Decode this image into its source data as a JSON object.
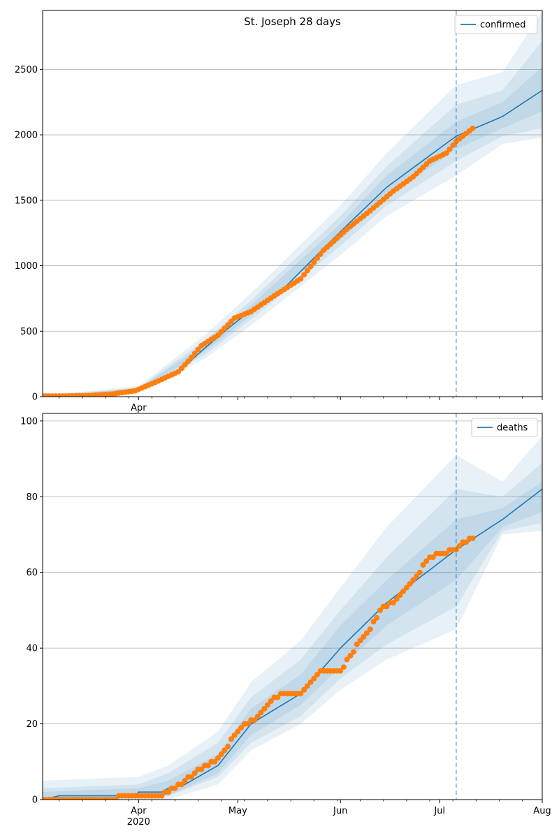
{
  "figure": {
    "title": "St. Joseph 28 days"
  },
  "chart_data": [
    {
      "type": "line",
      "name": "confirmed",
      "legend": {
        "label": "confirmed",
        "placement": "top-right"
      },
      "series_color": "#1f77b4",
      "observed_color": "#ff7f0e",
      "band_color": "#1f77b4",
      "grid": "y",
      "x_range": [
        "2020-03-03",
        "2020-08-01"
      ],
      "ylim": [
        0,
        2950
      ],
      "yticks": [
        0,
        500,
        1000,
        1500,
        2000,
        2500
      ],
      "vline_date": "2020-07-06",
      "x_major_ticks": [
        {
          "date": "2020-04-01",
          "label": "Apr",
          "sublabel": ""
        },
        {
          "date": "2020-05-01",
          "label": "",
          "sublabel": ""
        },
        {
          "date": "2020-06-01",
          "label": "",
          "sublabel": ""
        },
        {
          "date": "2020-07-01",
          "label": "",
          "sublabel": ""
        },
        {
          "date": "2020-08-01",
          "label": "",
          "sublabel": ""
        }
      ],
      "median_anchors": [
        [
          "2020-03-03",
          5
        ],
        [
          "2020-03-20",
          12
        ],
        [
          "2020-03-28",
          30
        ],
        [
          "2020-04-01",
          55
        ],
        [
          "2020-04-07",
          110
        ],
        [
          "2020-04-14",
          210
        ],
        [
          "2020-04-21",
          370
        ],
        [
          "2020-04-28",
          520
        ],
        [
          "2020-05-05",
          660
        ],
        [
          "2020-05-15",
          830
        ],
        [
          "2020-06-01",
          1260
        ],
        [
          "2020-06-15",
          1600
        ],
        [
          "2020-07-06",
          1990
        ],
        [
          "2020-07-20",
          2140
        ],
        [
          "2020-08-01",
          2340
        ]
      ],
      "bands": [
        {
          "lower": [
            [
              "2020-03-03",
              0
            ],
            [
              "2020-04-01",
              35
            ],
            [
              "2020-04-21",
              290
            ],
            [
              "2020-05-05",
              545
            ],
            [
              "2020-06-01",
              1080
            ],
            [
              "2020-06-15",
              1380
            ],
            [
              "2020-07-06",
              1690
            ],
            [
              "2020-07-20",
              1930
            ],
            [
              "2020-08-01",
              1980
            ]
          ],
          "upper": [
            [
              "2020-03-03",
              8
            ],
            [
              "2020-04-01",
              80
            ],
            [
              "2020-04-21",
              470
            ],
            [
              "2020-05-05",
              790
            ],
            [
              "2020-06-01",
              1460
            ],
            [
              "2020-06-15",
              1860
            ],
            [
              "2020-07-06",
              2380
            ],
            [
              "2020-07-20",
              2480
            ],
            [
              "2020-08-01",
              2940
            ]
          ]
        },
        {
          "lower": [
            [
              "2020-03-03",
              1
            ],
            [
              "2020-04-01",
              42
            ],
            [
              "2020-04-21",
              320
            ],
            [
              "2020-05-05",
              590
            ],
            [
              "2020-06-01",
              1150
            ],
            [
              "2020-06-15",
              1460
            ],
            [
              "2020-07-06",
              1800
            ],
            [
              "2020-07-20",
              1990
            ],
            [
              "2020-08-01",
              2050
            ]
          ],
          "upper": [
            [
              "2020-03-03",
              7
            ],
            [
              "2020-04-01",
              70
            ],
            [
              "2020-04-21",
              430
            ],
            [
              "2020-05-05",
              735
            ],
            [
              "2020-06-01",
              1380
            ],
            [
              "2020-06-15",
              1760
            ],
            [
              "2020-07-06",
              2230
            ],
            [
              "2020-07-20",
              2340
            ],
            [
              "2020-08-01",
              2720
            ]
          ]
        },
        {
          "lower": [
            [
              "2020-03-03",
              2
            ],
            [
              "2020-04-01",
              48
            ],
            [
              "2020-04-21",
              345
            ],
            [
              "2020-05-05",
              620
            ],
            [
              "2020-06-01",
              1200
            ],
            [
              "2020-06-15",
              1520
            ],
            [
              "2020-07-06",
              1890
            ],
            [
              "2020-07-20",
              2050
            ],
            [
              "2020-08-01",
              2180
            ]
          ],
          "upper": [
            [
              "2020-03-03",
              6
            ],
            [
              "2020-04-01",
              62
            ],
            [
              "2020-04-21",
              400
            ],
            [
              "2020-05-05",
              700
            ],
            [
              "2020-06-01",
              1320
            ],
            [
              "2020-06-15",
              1690
            ],
            [
              "2020-07-06",
              2100
            ],
            [
              "2020-07-20",
              2250
            ],
            [
              "2020-08-01",
              2520
            ]
          ]
        }
      ],
      "observed_anchors": [
        [
          "2020-03-03",
          5
        ],
        [
          "2020-03-10",
          5
        ],
        [
          "2020-03-17",
          8
        ],
        [
          "2020-03-24",
          20
        ],
        [
          "2020-03-31",
          45
        ],
        [
          "2020-04-07",
          120
        ],
        [
          "2020-04-13",
          190
        ],
        [
          "2020-04-16",
          270
        ],
        [
          "2020-04-20",
          390
        ],
        [
          "2020-04-25",
          470
        ],
        [
          "2020-04-30",
          600
        ],
        [
          "2020-05-05",
          650
        ],
        [
          "2020-05-12",
          770
        ],
        [
          "2020-05-20",
          900
        ],
        [
          "2020-05-27",
          1120
        ],
        [
          "2020-06-03",
          1280
        ],
        [
          "2020-06-10",
          1420
        ],
        [
          "2020-06-17",
          1570
        ],
        [
          "2020-06-23",
          1680
        ],
        [
          "2020-06-28",
          1800
        ],
        [
          "2020-07-03",
          1860
        ],
        [
          "2020-07-06",
          1950
        ],
        [
          "2020-07-11",
          2050
        ]
      ]
    },
    {
      "type": "line",
      "name": "deaths",
      "legend": {
        "label": "deaths",
        "placement": "top-right"
      },
      "series_color": "#1f77b4",
      "observed_color": "#ff7f0e",
      "band_color": "#1f77b4",
      "grid": "y",
      "x_range": [
        "2020-03-03",
        "2020-08-01"
      ],
      "ylim": [
        0,
        102
      ],
      "yticks": [
        0,
        20,
        40,
        60,
        80,
        100
      ],
      "vline_date": "2020-07-06",
      "x_major_ticks": [
        {
          "date": "2020-04-01",
          "label": "Apr",
          "sublabel": "2020"
        },
        {
          "date": "2020-05-01",
          "label": "May",
          "sublabel": ""
        },
        {
          "date": "2020-06-01",
          "label": "Jun",
          "sublabel": ""
        },
        {
          "date": "2020-07-01",
          "label": "Jul",
          "sublabel": ""
        },
        {
          "date": "2020-08-01",
          "label": "Aug",
          "sublabel": ""
        }
      ],
      "median_anchors": [
        [
          "2020-03-03",
          0
        ],
        [
          "2020-03-08",
          1
        ],
        [
          "2020-03-31",
          1
        ],
        [
          "2020-04-01",
          2
        ],
        [
          "2020-04-08",
          2
        ],
        [
          "2020-04-10",
          3
        ],
        [
          "2020-04-15",
          4
        ],
        [
          "2020-04-25",
          9
        ],
        [
          "2020-05-05",
          20
        ],
        [
          "2020-05-20",
          28
        ],
        [
          "2020-06-01",
          40
        ],
        [
          "2020-06-15",
          52
        ],
        [
          "2020-07-06",
          66
        ],
        [
          "2020-07-20",
          74
        ],
        [
          "2020-08-01",
          82
        ]
      ],
      "bands": [
        {
          "lower": [
            [
              "2020-03-03",
              0
            ],
            [
              "2020-04-10",
              0
            ],
            [
              "2020-04-25",
              4
            ],
            [
              "2020-05-05",
              13
            ],
            [
              "2020-05-20",
              20
            ],
            [
              "2020-06-01",
              29
            ],
            [
              "2020-06-15",
              37
            ],
            [
              "2020-07-06",
              45
            ],
            [
              "2020-07-20",
              70
            ],
            [
              "2020-08-01",
              71
            ]
          ],
          "upper": [
            [
              "2020-03-03",
              5
            ],
            [
              "2020-04-01",
              6
            ],
            [
              "2020-04-10",
              9
            ],
            [
              "2020-04-25",
              18
            ],
            [
              "2020-05-05",
              31
            ],
            [
              "2020-05-20",
              42
            ],
            [
              "2020-06-01",
              56
            ],
            [
              "2020-06-15",
              72
            ],
            [
              "2020-07-06",
              91
            ],
            [
              "2020-07-20",
              84
            ],
            [
              "2020-08-01",
              96
            ]
          ]
        },
        {
          "lower": [
            [
              "2020-03-03",
              0
            ],
            [
              "2020-04-10",
              1
            ],
            [
              "2020-04-25",
              6
            ],
            [
              "2020-05-05",
              15
            ],
            [
              "2020-05-20",
              22
            ],
            [
              "2020-06-01",
              32
            ],
            [
              "2020-06-15",
              41
            ],
            [
              "2020-07-06",
              51
            ],
            [
              "2020-07-20",
              71
            ],
            [
              "2020-08-01",
              73
            ]
          ],
          "upper": [
            [
              "2020-03-03",
              3
            ],
            [
              "2020-04-01",
              4
            ],
            [
              "2020-04-10",
              7
            ],
            [
              "2020-04-25",
              15
            ],
            [
              "2020-05-05",
              27
            ],
            [
              "2020-05-20",
              37
            ],
            [
              "2020-06-01",
              50
            ],
            [
              "2020-06-15",
              64
            ],
            [
              "2020-07-06",
              82
            ],
            [
              "2020-07-20",
              80
            ],
            [
              "2020-08-01",
              89
            ]
          ]
        },
        {
          "lower": [
            [
              "2020-03-03",
              0
            ],
            [
              "2020-04-10",
              1
            ],
            [
              "2020-04-25",
              7
            ],
            [
              "2020-05-05",
              17
            ],
            [
              "2020-05-20",
              25
            ],
            [
              "2020-06-01",
              35
            ],
            [
              "2020-06-15",
              46
            ],
            [
              "2020-07-06",
              58
            ],
            [
              "2020-07-20",
              72
            ],
            [
              "2020-08-01",
              76
            ]
          ],
          "upper": [
            [
              "2020-03-03",
              2
            ],
            [
              "2020-04-01",
              3
            ],
            [
              "2020-04-10",
              5
            ],
            [
              "2020-04-25",
              12
            ],
            [
              "2020-05-05",
              24
            ],
            [
              "2020-05-20",
              33
            ],
            [
              "2020-06-01",
              46
            ],
            [
              "2020-06-15",
              58
            ],
            [
              "2020-07-06",
              74
            ],
            [
              "2020-07-20",
              77
            ],
            [
              "2020-08-01",
              84
            ]
          ]
        }
      ],
      "observed_anchors": [
        [
          "2020-03-03",
          0
        ],
        [
          "2020-03-25",
          0
        ],
        [
          "2020-03-26",
          1
        ],
        [
          "2020-04-08",
          1
        ],
        [
          "2020-04-12",
          3
        ],
        [
          "2020-04-18",
          7
        ],
        [
          "2020-04-25",
          11
        ],
        [
          "2020-05-02",
          19
        ],
        [
          "2020-05-06",
          21
        ],
        [
          "2020-05-10",
          25
        ],
        [
          "2020-05-14",
          28
        ],
        [
          "2020-05-20",
          28
        ],
        [
          "2020-05-25",
          33
        ],
        [
          "2020-05-27",
          34
        ],
        [
          "2020-06-01",
          34
        ],
        [
          "2020-06-04",
          38
        ],
        [
          "2020-06-07",
          42
        ],
        [
          "2020-06-10",
          45
        ],
        [
          "2020-06-13",
          50
        ],
        [
          "2020-06-18",
          53
        ],
        [
          "2020-06-24",
          59
        ],
        [
          "2020-06-28",
          64
        ],
        [
          "2020-07-06",
          66
        ],
        [
          "2020-07-08",
          68
        ],
        [
          "2020-07-11",
          69
        ]
      ]
    }
  ]
}
